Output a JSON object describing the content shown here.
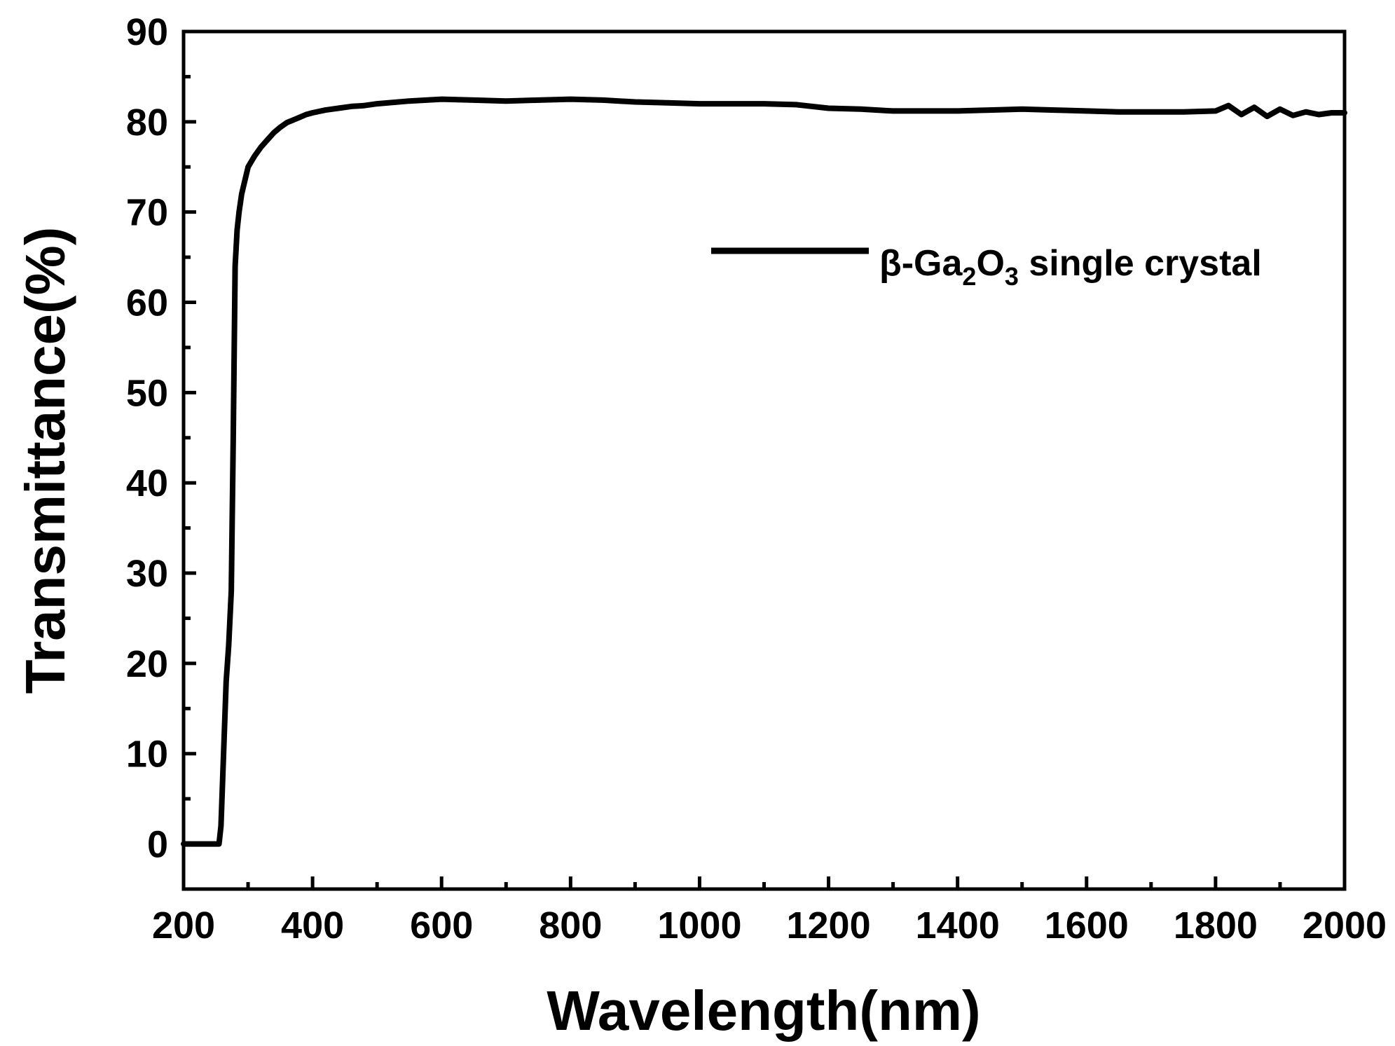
{
  "chart_data": {
    "type": "line",
    "xlabel": "Wavelength(nm)",
    "ylabel": "Transmittance(%)",
    "xlim": [
      200,
      2000
    ],
    "ylim": [
      -5,
      90
    ],
    "xticks": [
      200,
      400,
      600,
      800,
      1000,
      1200,
      1400,
      1600,
      1800,
      2000
    ],
    "yticks": [
      0,
      10,
      20,
      30,
      40,
      50,
      60,
      70,
      80,
      90
    ],
    "xticks_minor": [
      300,
      500,
      700,
      900,
      1100,
      1300,
      1500,
      1700,
      1900
    ],
    "yticks_minor": [
      -5,
      5,
      15,
      25,
      35,
      45,
      55,
      65,
      75,
      85
    ],
    "grid": false,
    "legend_position": "top-right",
    "colors": {
      "line": "#000000",
      "axes": "#000000",
      "background": "#ffffff"
    },
    "legend": {
      "prefix": "β-Ga",
      "sub1": "2",
      "mid": "O",
      "sub2": "3",
      "suffix": " single crystal"
    },
    "series": [
      {
        "name": "β-Ga2O3 single crystal",
        "x": [
          200,
          255,
          258,
          262,
          266,
          270,
          274,
          277,
          280,
          283,
          286,
          290,
          295,
          300,
          310,
          320,
          330,
          340,
          350,
          360,
          370,
          380,
          390,
          400,
          420,
          440,
          460,
          480,
          500,
          550,
          600,
          650,
          700,
          750,
          800,
          850,
          900,
          950,
          1000,
          1050,
          1100,
          1150,
          1200,
          1250,
          1300,
          1350,
          1400,
          1450,
          1500,
          1550,
          1600,
          1650,
          1700,
          1750,
          1800,
          1820,
          1840,
          1860,
          1880,
          1900,
          1920,
          1940,
          1960,
          1980,
          2000
        ],
        "y": [
          0,
          0,
          2,
          10,
          18,
          22,
          28,
          45,
          64,
          68,
          70,
          72,
          73.5,
          75,
          76.2,
          77.2,
          78,
          78.8,
          79.4,
          79.9,
          80.2,
          80.5,
          80.8,
          81,
          81.3,
          81.5,
          81.7,
          81.8,
          82,
          82.3,
          82.5,
          82.4,
          82.3,
          82.4,
          82.5,
          82.4,
          82.2,
          82.1,
          82,
          82,
          82,
          81.9,
          81.5,
          81.4,
          81.2,
          81.2,
          81.2,
          81.3,
          81.4,
          81.3,
          81.2,
          81.1,
          81.1,
          81.1,
          81.2,
          81.8,
          80.8,
          81.6,
          80.6,
          81.4,
          80.7,
          81.1,
          80.8,
          81,
          81
        ]
      }
    ]
  }
}
